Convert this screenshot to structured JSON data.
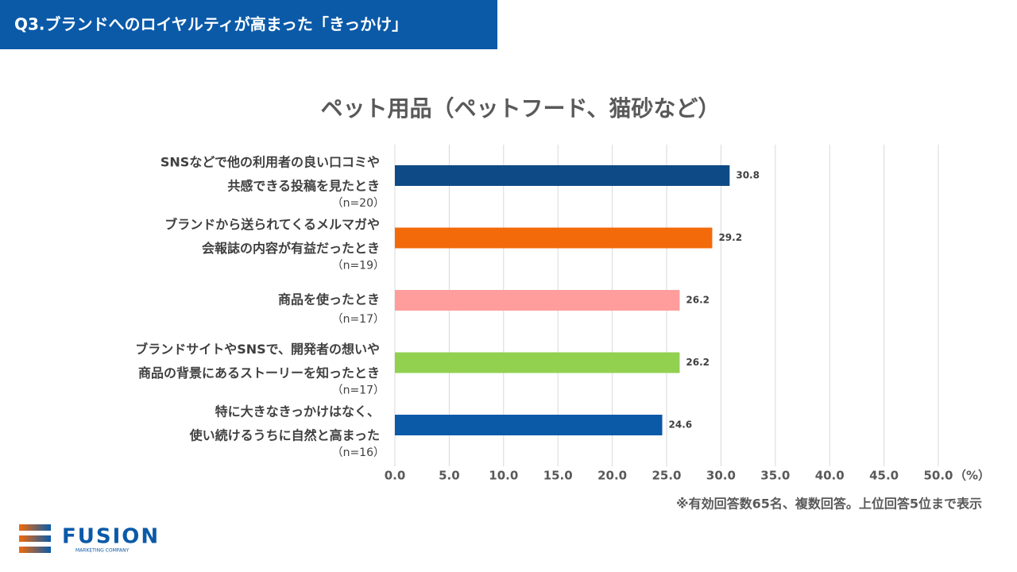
{
  "header": {
    "title": "Q3.ブランドへのロイヤルティが高まった「きっかけ」"
  },
  "chart_data": {
    "type": "bar",
    "orientation": "horizontal",
    "title": "ペット用品（ペットフード、猫砂など）",
    "categories": [
      [
        "SNSなどで他の利用者の良い口コミや",
        "共感できる投稿を見たとき"
      ],
      [
        "ブランドから送られてくるメルマガや",
        "会報誌の内容が有益だったとき"
      ],
      [
        "商品を使ったとき"
      ],
      [
        "ブランドサイトやSNSで、開発者の想いや",
        "商品の背景にあるストーリーを知ったとき"
      ],
      [
        "特に大きなきっかけはなく、",
        "使い続けるうちに自然と高まった"
      ]
    ],
    "sample_sizes": [
      "（n=20）",
      "（n=19）",
      "（n=17）",
      "（n=17）",
      "（n=16）"
    ],
    "values": [
      30.8,
      29.2,
      26.2,
      26.2,
      24.6
    ],
    "colors": [
      "#0e4a86",
      "#f26a0a",
      "#ff9c9c",
      "#92d050",
      "#0a5aa8"
    ],
    "xlim": [
      0,
      50
    ],
    "xticks": [
      {
        "value": 0,
        "label": "0.0"
      },
      {
        "value": 5,
        "label": "5.0"
      },
      {
        "value": 10,
        "label": "10.0"
      },
      {
        "value": 15,
        "label": "15.0"
      },
      {
        "value": 20,
        "label": "20.0"
      },
      {
        "value": 25,
        "label": "25.0"
      },
      {
        "value": 30,
        "label": "30.0"
      },
      {
        "value": 35,
        "label": "35.0"
      },
      {
        "value": 40,
        "label": "40.0"
      },
      {
        "value": 45,
        "label": "45.0"
      },
      {
        "value": 50,
        "label": "50.0"
      }
    ],
    "x_unit": "（%）",
    "grid": true
  },
  "footnote": "※有効回答数65名、複数回答。上位回答5位まで表示",
  "logo": {
    "name": "FUSION",
    "tagline": "MARKETING COMPANY"
  }
}
